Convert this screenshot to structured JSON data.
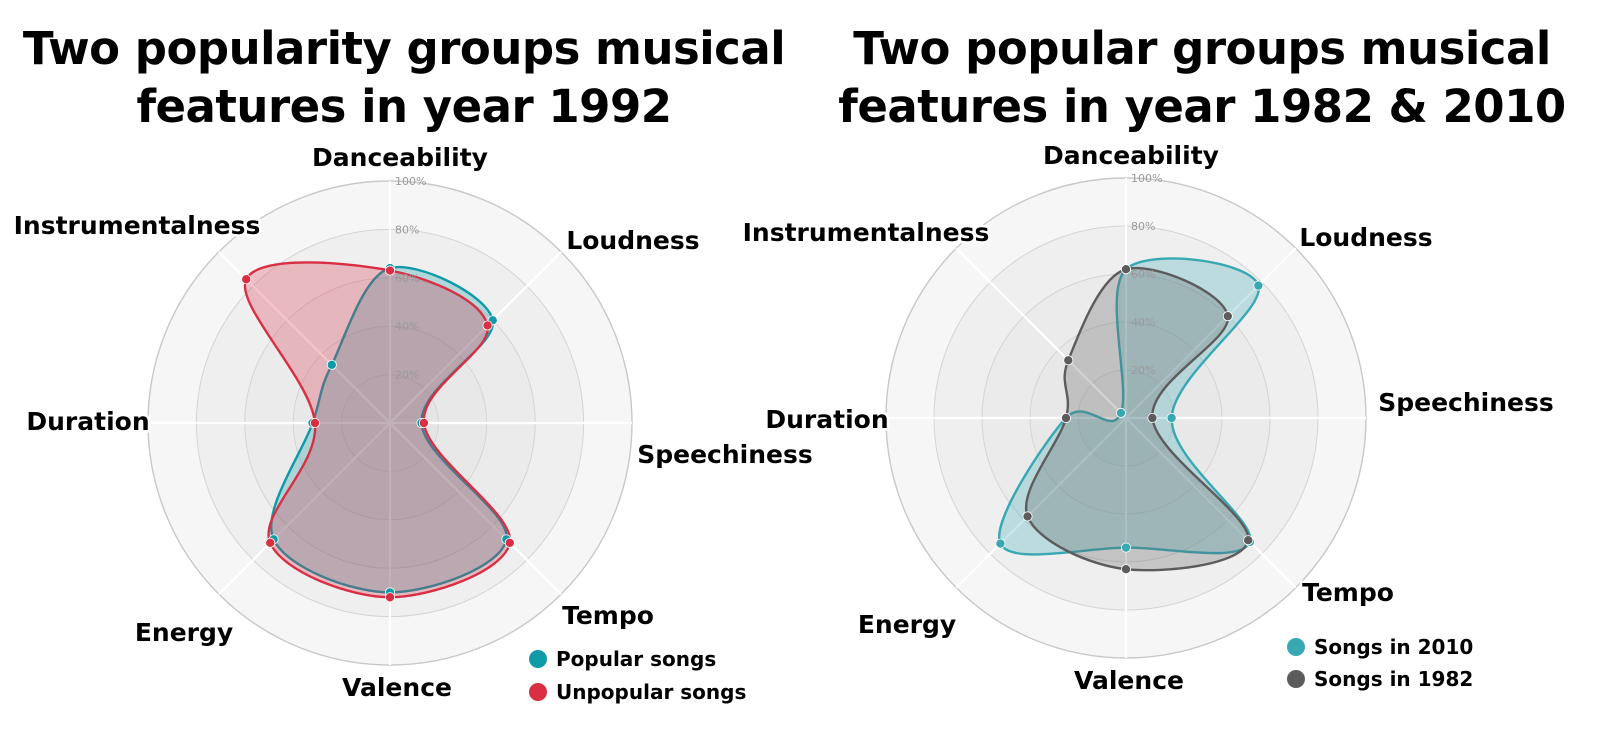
{
  "chart_data": [
    {
      "type": "radar",
      "title_lines": [
        "Two popularity groups musical",
        "features in year 1992"
      ],
      "axes": [
        "Danceability",
        "Loudness",
        "Speechiness",
        "Tempo",
        "Valence",
        "Energy",
        "Duration",
        "Instrumentalness"
      ],
      "ticks": [
        "20%",
        "40%",
        "60%",
        "80%",
        "100%"
      ],
      "range": [
        0,
        100
      ],
      "grid": true,
      "legend_position": "bottom-right",
      "series": [
        {
          "name": "Popular songs",
          "color": "#0e9aa7",
          "values": [
            64,
            60,
            13,
            68,
            70,
            68,
            32,
            34
          ]
        },
        {
          "name": "Unpopular songs",
          "color": "#d92f45",
          "values": [
            63,
            57,
            14,
            70,
            72,
            70,
            31,
            84
          ]
        }
      ]
    },
    {
      "type": "radar",
      "title_lines": [
        "Two popular groups musical",
        "features in year 1982 & 2010"
      ],
      "axes": [
        "Danceability",
        "Loudness",
        "Speechiness",
        "Tempo",
        "Valence",
        "Energy",
        "Duration",
        "Instrumentalness"
      ],
      "ticks": [
        "20%",
        "40%",
        "60%",
        "80%",
        "100%"
      ],
      "range": [
        0,
        100
      ],
      "grid": true,
      "legend_position": "bottom-right",
      "series": [
        {
          "name": "Songs in 2010",
          "color": "#38a8b3",
          "values": [
            62,
            78,
            19,
            73,
            54,
            74,
            25,
            3
          ]
        },
        {
          "name": "Songs in 1982",
          "color": "#5c5c5c",
          "values": [
            62,
            60,
            11,
            72,
            63,
            58,
            25,
            34
          ]
        }
      ]
    }
  ]
}
